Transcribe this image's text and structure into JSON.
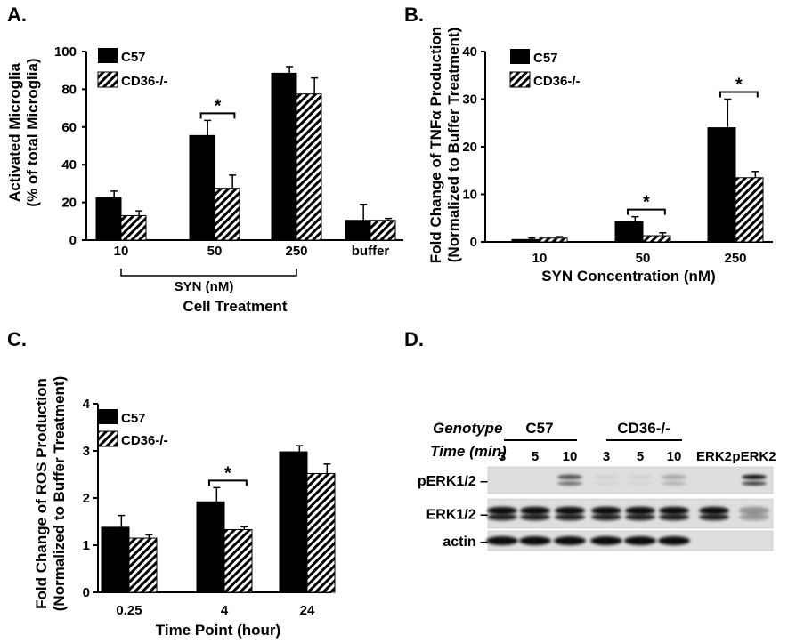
{
  "colors": {
    "c57": "#000000",
    "cd36": "hatch-black-white",
    "blot_bg": "#dedede"
  },
  "chart_data": [
    {
      "panel": "A.",
      "type": "bar",
      "ylabel": [
        "Activated Microglia",
        "(% of total Microglia)"
      ],
      "xlabel": "Cell Treatment",
      "group_label": "SYN (nM)",
      "categories": [
        "10",
        "50",
        "250",
        "buffer"
      ],
      "yticks": [
        "0",
        "20",
        "40",
        "60",
        "80",
        "100"
      ],
      "ylim": [
        0,
        100
      ],
      "series": [
        {
          "name": "C57",
          "values": [
            22.5,
            55.5,
            88.5,
            10.5
          ],
          "errors": [
            3.5,
            8,
            3.5,
            8.5
          ]
        },
        {
          "name": "CD36-/-",
          "values": [
            13,
            27.5,
            77.5,
            10.5
          ],
          "errors": [
            2.5,
            7,
            8.5,
            1
          ]
        }
      ],
      "significance": [
        {
          "category": "50",
          "label": "*"
        }
      ]
    },
    {
      "panel": "B.",
      "type": "bar",
      "ylabel": [
        "Fold Change of TNFα Production",
        "(Normalized to Buffer Treatment)"
      ],
      "xlabel": "SYN Concentration (nM)",
      "categories": [
        "10",
        "50",
        "250"
      ],
      "yticks": [
        "0",
        "10",
        "20",
        "30",
        "40"
      ],
      "ylim": [
        0,
        40
      ],
      "series": [
        {
          "name": "C57",
          "values": [
            0.5,
            4.3,
            24
          ],
          "errors": [
            0.3,
            1,
            6
          ]
        },
        {
          "name": "CD36-/-",
          "values": [
            0.8,
            1.3,
            13.5
          ],
          "errors": [
            0.3,
            0.6,
            1.3
          ]
        }
      ],
      "significance": [
        {
          "category": "50",
          "label": "*"
        },
        {
          "category": "250",
          "label": "*"
        }
      ]
    },
    {
      "panel": "C.",
      "type": "bar",
      "ylabel": [
        "Fold Change of ROS Production",
        "(Normalized to Buffer Treatment)"
      ],
      "xlabel": "Time Point (hour)",
      "categories": [
        "0.25",
        "4",
        "24"
      ],
      "yticks": [
        "0",
        "1",
        "2",
        "3",
        "4"
      ],
      "ylim": [
        0,
        4
      ],
      "series": [
        {
          "name": "C57",
          "values": [
            1.38,
            1.92,
            2.98
          ],
          "errors": [
            0.25,
            0.3,
            0.13
          ]
        },
        {
          "name": "CD36-/-",
          "values": [
            1.15,
            1.33,
            2.52
          ],
          "errors": [
            0.07,
            0.06,
            0.2
          ]
        }
      ],
      "significance": [
        {
          "category": "4",
          "label": "*"
        }
      ]
    }
  ],
  "western_blot": {
    "panel": "D.",
    "genotype_label": "Genotype",
    "time_label": "Time (min)",
    "groups": [
      "C57",
      "CD36-/-"
    ],
    "lanes": [
      "3",
      "5",
      "10",
      "3",
      "5",
      "10",
      "ERK2",
      "pERK2"
    ],
    "rows": [
      "pERK1/2 –",
      "ERK1/2 –",
      "actin –"
    ],
    "intensities": [
      [
        0,
        0,
        0.65,
        0.05,
        0.05,
        0.25,
        0,
        0.95
      ],
      [
        1,
        1,
        1,
        1,
        1,
        1,
        1,
        0.35
      ],
      [
        1,
        1,
        1,
        1,
        1,
        1,
        0,
        0
      ]
    ]
  }
}
